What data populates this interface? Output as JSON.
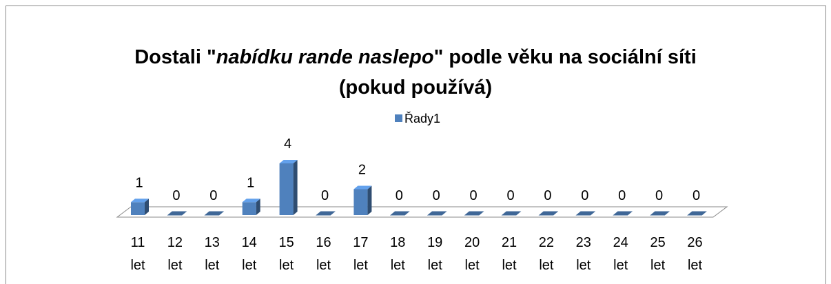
{
  "chart_data": {
    "type": "bar3d",
    "title": [
      "Dostali \"",
      "nabídku rande naslepo",
      "\" podle věku na sociální síti",
      "(pokud používá)"
    ],
    "categories": [
      "11 let",
      "12 let",
      "13 let",
      "14 let",
      "15 let",
      "16 let",
      "17 let",
      "18 let",
      "19 let",
      "20 let",
      "21 let",
      "22 let",
      "23 let",
      "24 let",
      "25 let",
      "26 let"
    ],
    "series": [
      {
        "name": "Řady1",
        "color": "#4f81bd",
        "values": [
          1,
          0,
          0,
          1,
          4,
          0,
          2,
          0,
          0,
          0,
          0,
          0,
          0,
          0,
          0,
          0
        ]
      }
    ],
    "legend": "top"
  }
}
